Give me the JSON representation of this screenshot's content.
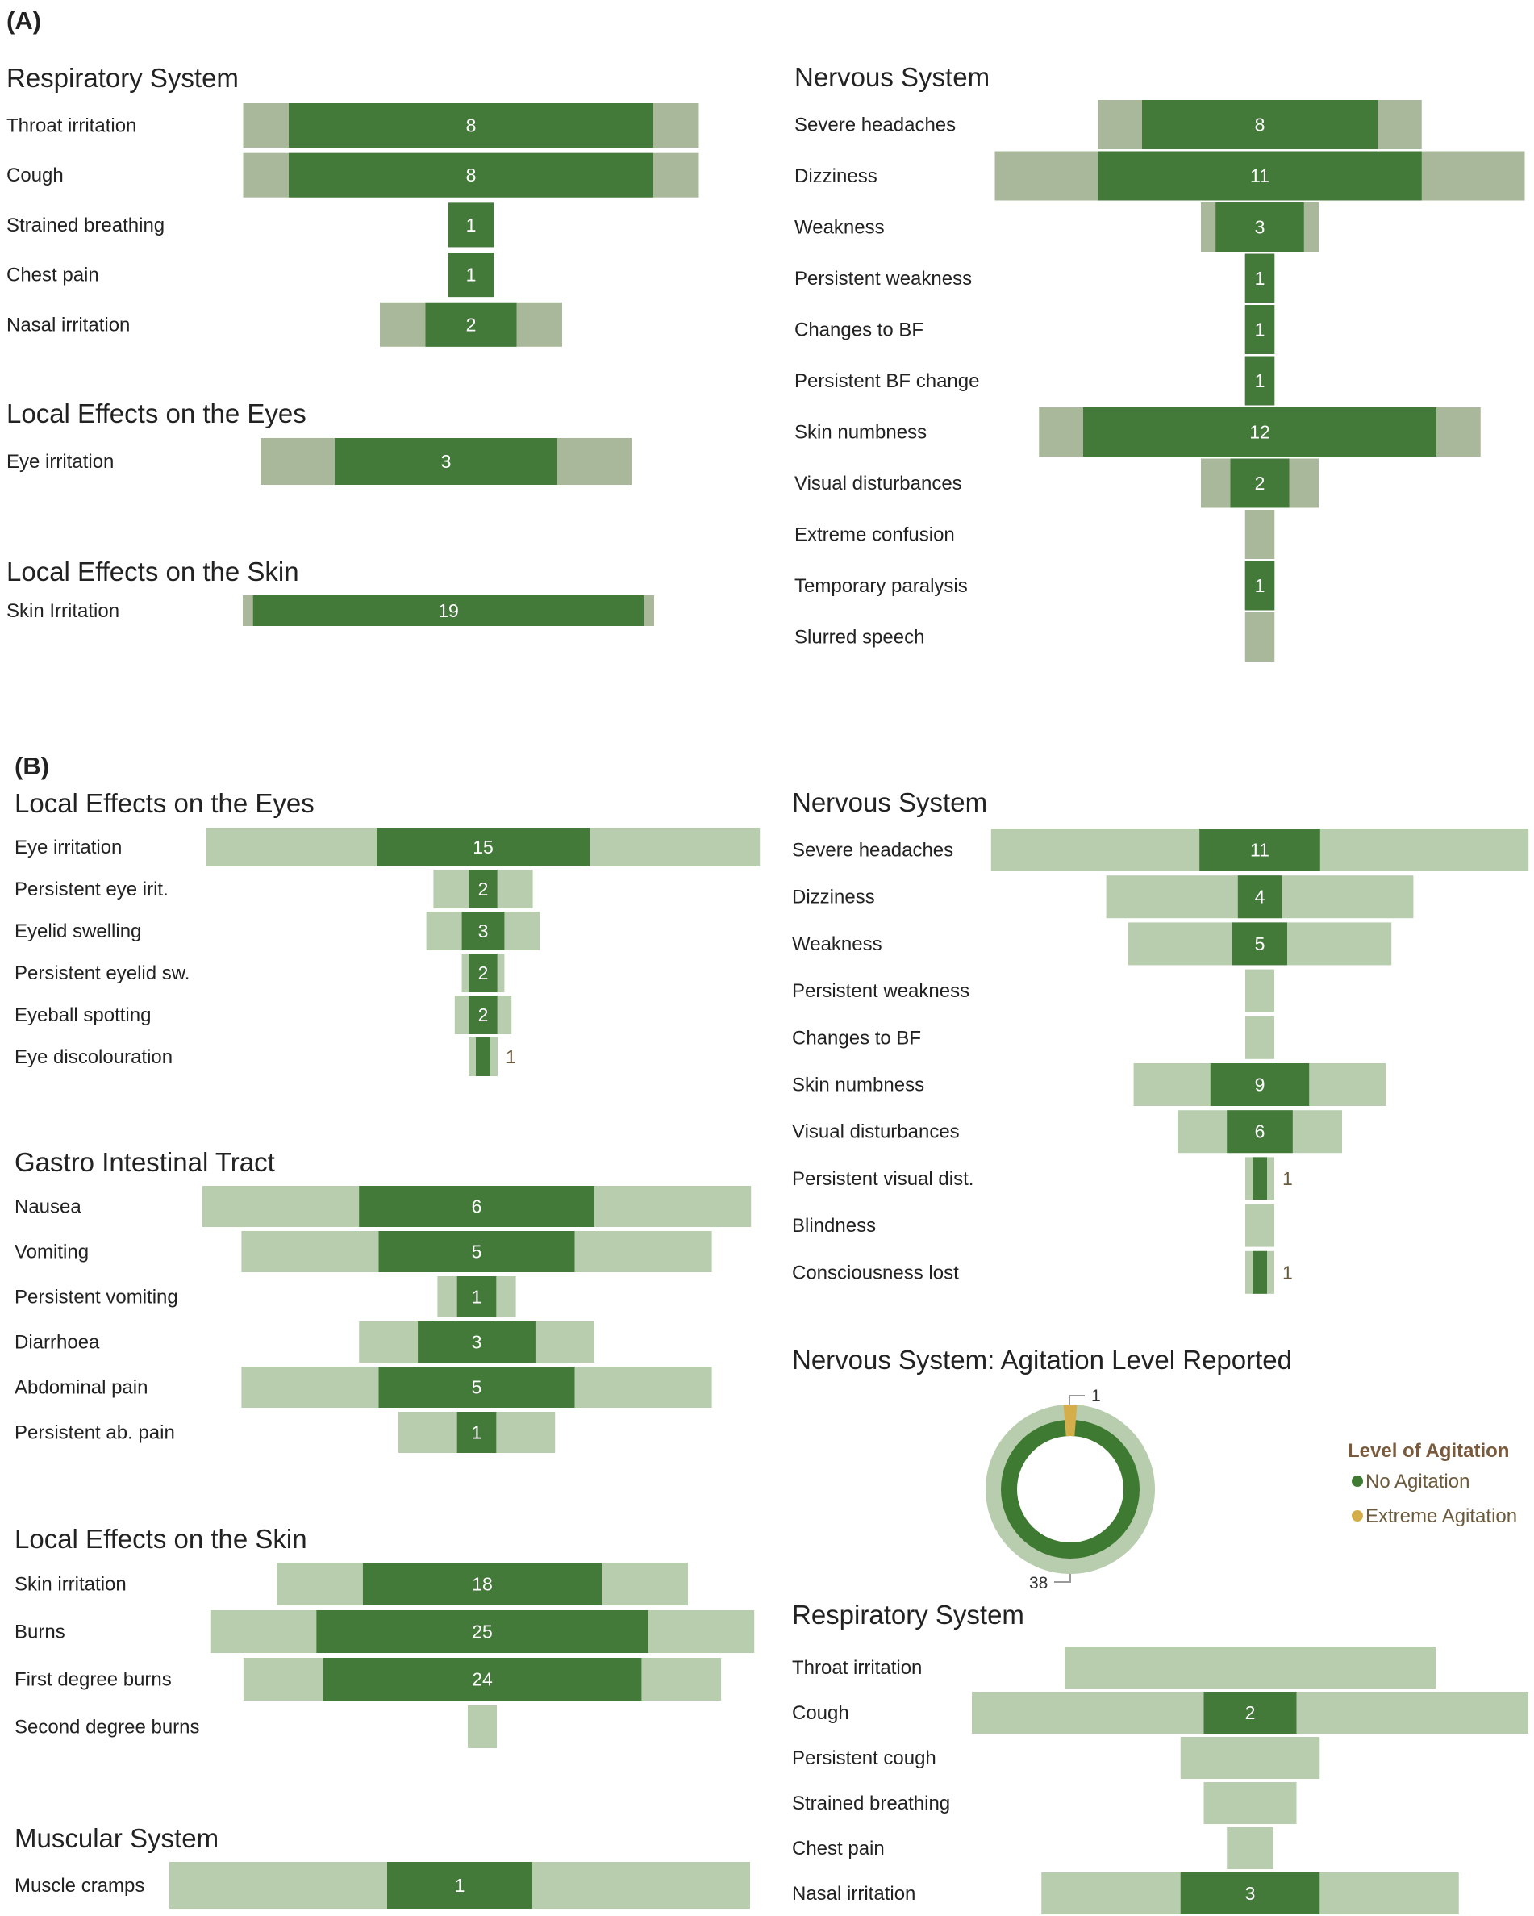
{
  "colors": {
    "dark_bar": "#437A3A",
    "light_bar_A": "#A9B89A",
    "light_bar_B": "#B7CDAE",
    "no_agitation": "#3E7A31",
    "extreme_agitation": "#D4AE4A",
    "legend_title": "#7A5A3C"
  },
  "chart_data": [
    {
      "type": "bar",
      "panel": "(A)",
      "title": "Respiratory System",
      "categories": [
        "Throat irritation",
        "Cough",
        "Strained breathing",
        "Chest pain",
        "Nasal irritation"
      ],
      "values": [
        8,
        8,
        1,
        1,
        2
      ],
      "outer_values": [
        10,
        10,
        1,
        1,
        4
      ],
      "value_labels": [
        "8",
        "8",
        "1",
        "1",
        "2"
      ]
    },
    {
      "type": "bar",
      "panel": "(A)",
      "title": "Local Effects on the Eyes",
      "categories": [
        "Eye irritation"
      ],
      "values": [
        3
      ],
      "outer_values": [
        5
      ],
      "value_labels": [
        "3"
      ]
    },
    {
      "type": "bar",
      "panel": "(A)",
      "title": "Local Effects on the Skin",
      "categories": [
        "Skin Irritation"
      ],
      "values": [
        19
      ],
      "outer_values": [
        20
      ],
      "value_labels": [
        "19"
      ]
    },
    {
      "type": "bar",
      "panel": "(A)",
      "title": "Nervous System",
      "categories": [
        "Severe headaches",
        "Dizziness",
        "Weakness",
        "Persistent weakness",
        "Changes to BF",
        "Persistent BF change",
        "Skin numbness",
        "Visual disturbances",
        "Extreme confusion",
        "Temporary paralysis",
        "Slurred speech"
      ],
      "values": [
        8,
        11,
        3,
        1,
        1,
        1,
        12,
        2,
        0,
        1,
        0
      ],
      "outer_values": [
        11,
        18,
        4,
        1,
        1,
        1,
        15,
        4,
        1,
        1,
        1
      ],
      "value_labels": [
        "8",
        "11",
        "3",
        "1",
        "1",
        "1",
        "12",
        "2",
        "",
        "1",
        ""
      ]
    },
    {
      "type": "bar",
      "panel": "(B)",
      "title": "Local Effects on the Eyes",
      "categories": [
        "Eye irritation",
        "Persistent eye irit.",
        "Eyelid swelling",
        "Persistent eyelid sw.",
        "Eyeball spotting",
        "Eye discolouration"
      ],
      "values": [
        15,
        2,
        3,
        2,
        2,
        1
      ],
      "outer_values": [
        39,
        7,
        8,
        3,
        4,
        2
      ],
      "value_labels": [
        "15",
        "2",
        "3",
        "2",
        "2",
        "1"
      ]
    },
    {
      "type": "bar",
      "panel": "(B)",
      "title": "Gastro Intestinal Tract",
      "categories": [
        "Nausea",
        "Vomiting",
        "Persistent vomiting",
        "Diarrhoea",
        "Abdominal pain",
        "Persistent ab. pain"
      ],
      "values": [
        6,
        5,
        1,
        3,
        5,
        1
      ],
      "outer_values": [
        14,
        12,
        2,
        6,
        12,
        4
      ],
      "value_labels": [
        "6",
        "5",
        "1",
        "3",
        "5",
        "1"
      ]
    },
    {
      "type": "bar",
      "panel": "(B)",
      "title": "Local Effects on the Skin",
      "categories": [
        "Skin irritation",
        "Burns",
        "First degree burns",
        "Second degree burns"
      ],
      "values": [
        18,
        25,
        24,
        0
      ],
      "outer_values": [
        31,
        41,
        36,
        1
      ],
      "value_labels": [
        "18",
        "25",
        "24",
        ""
      ]
    },
    {
      "type": "bar",
      "panel": "(B)",
      "title": "Muscular System",
      "categories": [
        "Muscle cramps"
      ],
      "values": [
        1
      ],
      "outer_values": [
        4
      ],
      "value_labels": [
        "1"
      ]
    },
    {
      "type": "bar",
      "panel": "(B)",
      "title": "Nervous System",
      "categories": [
        "Severe headaches",
        "Dizziness",
        "Weakness",
        "Persistent weakness",
        "Changes to BF",
        "Skin numbness",
        "Visual disturbances",
        "Persistent visual dist.",
        "Blindness",
        "Consciousness lost"
      ],
      "values": [
        11,
        4,
        5,
        0,
        0,
        9,
        6,
        1,
        0,
        1
      ],
      "outer_values": [
        49,
        28,
        24,
        1,
        1,
        23,
        15,
        2,
        1,
        1
      ],
      "value_labels": [
        "11",
        "4",
        "5",
        "",
        "",
        "9",
        "6",
        "1",
        "",
        "1"
      ]
    },
    {
      "type": "pie",
      "panel": "(B)",
      "title": "Nervous System: Agitation Level Reported",
      "categories": [
        "No Agitation",
        "Extreme Agitation"
      ],
      "values": [
        38,
        1
      ],
      "value_labels": [
        "38",
        "1"
      ],
      "legend_title": "Level of Agitation"
    },
    {
      "type": "bar",
      "panel": "(B)",
      "title": "Respiratory System",
      "categories": [
        "Throat irritation",
        "Cough",
        "Persistent cough",
        "Strained breathing",
        "Chest pain",
        "Nasal irritation"
      ],
      "values": [
        0,
        2,
        0,
        0,
        0,
        3
      ],
      "outer_values": [
        8,
        12,
        3,
        2,
        1,
        9
      ],
      "value_labels": [
        "",
        "2",
        "",
        "",
        "",
        "3"
      ]
    }
  ],
  "panels": [
    "(A)",
    "(B)"
  ]
}
